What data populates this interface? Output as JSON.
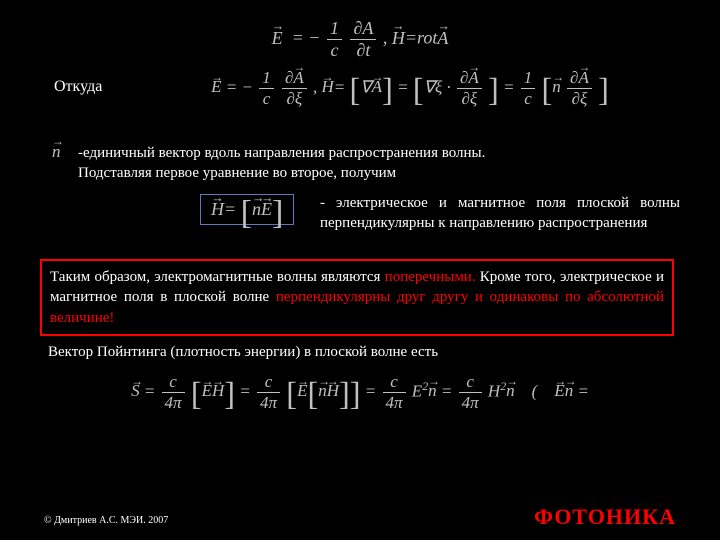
{
  "colors": {
    "background": "#000000",
    "text_primary": "#ffffff",
    "text_formula": "#c0c0c0",
    "accent_red": "#ff0000",
    "border_blue": "#5b7bbf",
    "border_red": "#ff0000"
  },
  "typography": {
    "family": "Times New Roman",
    "body_size_pt": 15,
    "formula_size_pt": 18
  },
  "eq1": {
    "E": "E",
    "minus": "−",
    "one": "1",
    "c": "c",
    "dA": "∂A",
    "dt": "∂t",
    "comma": " ,   ",
    "H": "H",
    "eq": "=",
    "rot": "rot",
    "A": "A"
  },
  "otkuda": "Откуда",
  "eq2": {
    "E": "E",
    "eqm": "= −",
    "one": "1",
    "c": "c",
    "dA": "∂A",
    "dxi": "∂ξ",
    "comma": ",   ",
    "H": "H",
    "eq": "=",
    "grad": "∇",
    "A": "A",
    "gradxi": "∇ξ ·",
    "n": "n"
  },
  "n_symbol": "n",
  "unit_text_line1": "-единичный вектор вдоль направления распространения волны.",
  "unit_text_line2": "Подставляя первое уравнение во второе, получим",
  "boxed": {
    "H": "H",
    "eq": "=",
    "n": "n",
    "E": "E"
  },
  "perp_text": "- электрическое и магнитное поля плоской волны перпендикулярны к направлению распространения",
  "redbox": {
    "p1": "Таким образом, электромагнитные волны являются ",
    "r1": "поперечными.",
    "p2": " Кроме того, электрическое и магнитное поля в плоской волне ",
    "r2": "перпендикулярны друг другу и одинаковы по абсолютной величине!"
  },
  "poynting_label": "Вектор Пойнтинга (плотность энергии) в плоской волне есть",
  "poynting": {
    "S": "S",
    "c": "c",
    "fourpi": "4π",
    "E": "E",
    "H": "H",
    "n": "n",
    "E2": "E",
    "H2": "H",
    "sq": "2",
    "open": "(",
    "En": "En",
    "eq": "="
  },
  "copyright": "© Дмитриев А.С. МЭИ. 2007",
  "photonics": "ФОТОНИКА"
}
